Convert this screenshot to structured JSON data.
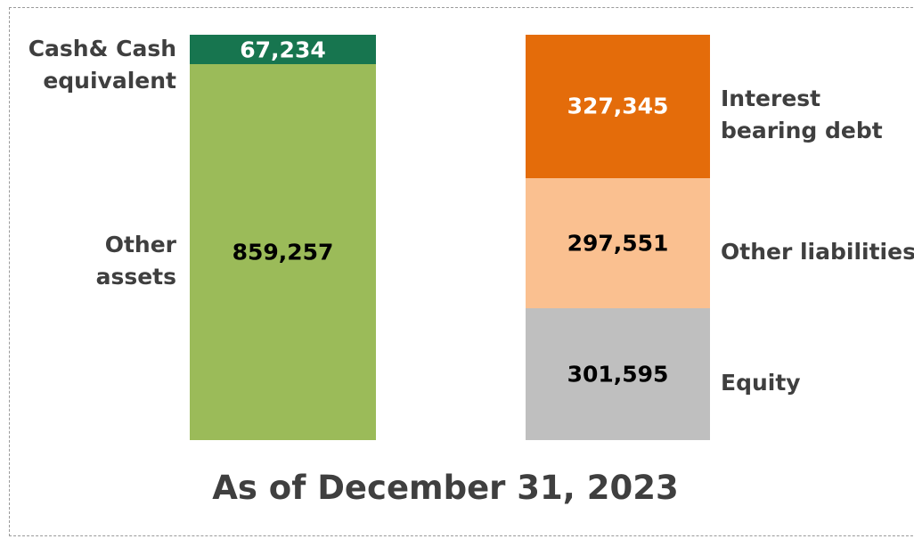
{
  "chart_data": {
    "type": "bar",
    "stacked": true,
    "xlabel": "As of December 31, 2023",
    "categories": [
      null,
      null
    ],
    "series": [
      {
        "name": "Cash& Cash equivalent",
        "color": "#17754f",
        "values": [
          67234,
          null
        ],
        "value_labels": [
          "67,234",
          null
        ]
      },
      {
        "name": "Other assets",
        "color": "#9bbb59",
        "values": [
          859257,
          null
        ],
        "value_labels": [
          "859,257",
          null
        ]
      },
      {
        "name": "Interest bearing debt",
        "color": "#e46c0a",
        "values": [
          null,
          327345
        ],
        "value_labels": [
          null,
          "327,345"
        ]
      },
      {
        "name": "Other liabilities",
        "color": "#fac090",
        "values": [
          null,
          297551
        ],
        "value_labels": [
          null,
          "297,551"
        ]
      },
      {
        "name": "Equity",
        "color": "#bfbfbf",
        "values": [
          null,
          301595
        ],
        "value_labels": [
          null,
          "301,595"
        ]
      }
    ]
  }
}
